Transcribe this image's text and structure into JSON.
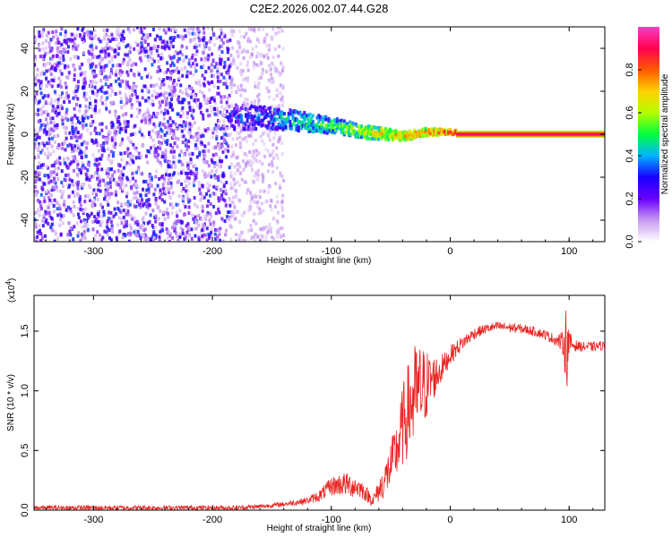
{
  "title": "C2E2.2026.002.07.44.G28",
  "chart_data": [
    {
      "type": "heatmap",
      "panel": "spectrogram",
      "xlabel": "Height of straight line (km)",
      "ylabel": "Frequency (Hz)",
      "xlim": [
        -350,
        130
      ],
      "ylim": [
        -50,
        50
      ],
      "xticks": [
        "-300",
        "-200",
        "-100",
        "0",
        "100"
      ],
      "xtick_values": [
        -300,
        -200,
        -100,
        0,
        100
      ],
      "yticks": [
        "40",
        "20",
        "0",
        "-20",
        "-40"
      ],
      "ytick_values": [
        40,
        20,
        0,
        -20,
        -40
      ],
      "colorbar": {
        "label": "Normalized spectral amplitude",
        "range": [
          0,
          1
        ],
        "ticks": [
          "0.0",
          "0.2",
          "0.4",
          "0.6",
          "0.8"
        ],
        "tick_values": [
          0.0,
          0.2,
          0.4,
          0.6,
          0.8
        ],
        "colors": [
          "#ffffff",
          "#c79af0",
          "#6a00ff",
          "#1800ff",
          "#00b4ff",
          "#00ff3c",
          "#b4ff00",
          "#ffd000",
          "#ff5a00",
          "#ff0050",
          "#ff3cc8"
        ]
      },
      "regions": [
        {
          "x_range": [
            -350,
            -185
          ],
          "description": "noise",
          "amplitude": 0.2
        },
        {
          "x_range": [
            -185,
            -140
          ],
          "description": "weak noise",
          "amplitude": 0.08
        },
        {
          "x_range": [
            -185,
            5
          ],
          "description": "tone emerging",
          "amplitude": 0.4
        },
        {
          "x_range": [
            5,
            130
          ],
          "description": "steady tone at 0 Hz",
          "amplitude": 0.95
        }
      ],
      "tone_track": [
        {
          "x": -180,
          "freq": 8
        },
        {
          "x": -140,
          "freq": 7
        },
        {
          "x": -100,
          "freq": 4
        },
        {
          "x": -70,
          "freq": 1
        },
        {
          "x": -40,
          "freq": -1
        },
        {
          "x": -20,
          "freq": 1
        },
        {
          "x": 0,
          "freq": 1
        },
        {
          "x": 20,
          "freq": 0
        },
        {
          "x": 130,
          "freq": 0
        }
      ]
    },
    {
      "type": "line",
      "panel": "snr",
      "xlabel": "Height of straight line (km)",
      "ylabel": "SNR (10 * v/v)",
      "y_scale_label": "(x10",
      "y_scale_exponent": "4",
      "xlim": [
        -350,
        130
      ],
      "ylim": [
        0,
        1.8
      ],
      "xticks": [
        "-300",
        "-200",
        "-100",
        "0",
        "100"
      ],
      "xtick_values": [
        -300,
        -200,
        -100,
        0,
        100
      ],
      "yticks": [
        "0.0",
        "0.5",
        "1.0",
        "1.5"
      ],
      "ytick_values": [
        0.0,
        0.5,
        1.0,
        1.5
      ],
      "color": "#e8231f",
      "series": [
        {
          "name": "SNR",
          "x": [
            -350,
            -250,
            -180,
            -160,
            -140,
            -120,
            -110,
            -100,
            -90,
            -80,
            -75,
            -65,
            -55,
            -45,
            -40,
            -35,
            -30,
            -25,
            -20,
            -15,
            -10,
            -5,
            0,
            10,
            20,
            30,
            40,
            50,
            60,
            70,
            80,
            90,
            95,
            98,
            100,
            105,
            110,
            120,
            130
          ],
          "values": [
            0.02,
            0.02,
            0.02,
            0.03,
            0.05,
            0.08,
            0.12,
            0.2,
            0.22,
            0.2,
            0.18,
            0.08,
            0.25,
            0.5,
            0.7,
            0.85,
            0.95,
            1.0,
            1.05,
            1.1,
            1.15,
            1.22,
            1.3,
            1.4,
            1.48,
            1.52,
            1.54,
            1.53,
            1.52,
            1.5,
            1.47,
            1.42,
            1.4,
            1.38,
            1.4,
            1.38,
            1.37,
            1.37,
            1.38
          ],
          "spread": [
            0.02,
            0.02,
            0.02,
            0.02,
            0.02,
            0.03,
            0.05,
            0.08,
            0.1,
            0.1,
            0.08,
            0.05,
            0.15,
            0.25,
            0.35,
            0.4,
            0.45,
            0.4,
            0.3,
            0.2,
            0.15,
            0.1,
            0.08,
            0.06,
            0.05,
            0.04,
            0.04,
            0.04,
            0.04,
            0.04,
            0.04,
            0.05,
            0.1,
            0.4,
            0.1,
            0.05,
            0.04,
            0.04,
            0.04
          ]
        }
      ]
    }
  ]
}
